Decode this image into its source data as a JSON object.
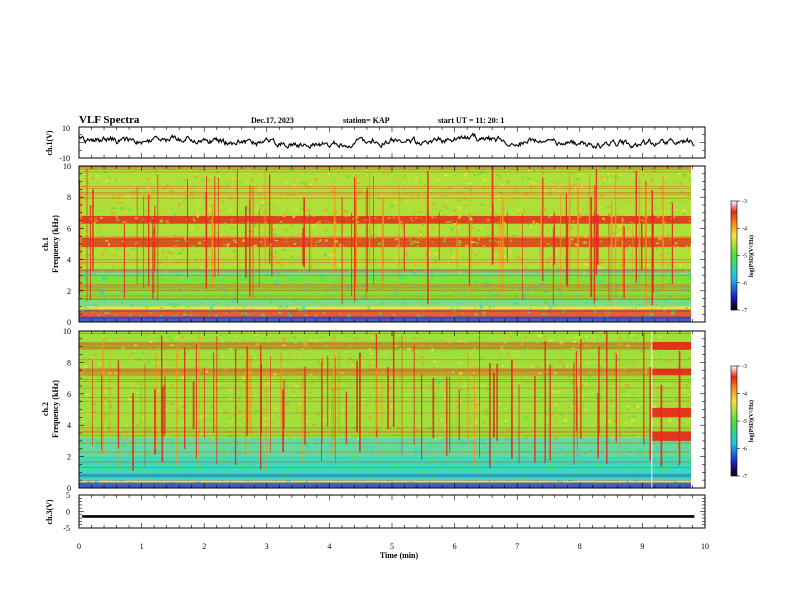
{
  "header": {
    "title": "VLF Spectra",
    "date": "Dec.17, 2023",
    "station": "station= KAP",
    "start": "start UT = 11: 20: 1"
  },
  "chart_data": [
    {
      "type": "line",
      "panel": "ch1-waveform",
      "ylabel": "ch.1(V)",
      "ylim": [
        -10,
        10
      ],
      "yticks": [
        "10",
        "-10"
      ],
      "xlim": [
        0,
        9.83
      ],
      "description_values": {
        "mean": 0.5,
        "typical_range": [
          -5,
          6
        ]
      }
    },
    {
      "type": "heatmap",
      "panel": "ch1-spectrogram",
      "ylabel": "ch.1\nFrequency (kHz)",
      "ylabel_lines": [
        "ch.1",
        "Frequency (kHz)"
      ],
      "ylim": [
        0,
        10
      ],
      "yticks": [
        "0",
        "2",
        "4",
        "6",
        "8",
        "10"
      ],
      "xlim": [
        0,
        9.83
      ],
      "colorbar": {
        "label": "log(PSD)(V²/Hz)",
        "range": [
          -7,
          -3
        ],
        "ticks": [
          "-7",
          "-6",
          "-5",
          "-4",
          "-3"
        ]
      },
      "bands_khz": [
        {
          "range": [
            6.3,
            6.7
          ],
          "level": "high"
        },
        {
          "range": [
            4.8,
            5.3
          ],
          "level": "high"
        },
        {
          "range": [
            3.0,
            3.4
          ],
          "level": "low"
        },
        {
          "range": [
            1.5,
            3.0
          ],
          "level": "low"
        },
        {
          "range": [
            0.2,
            0.8
          ],
          "level": "high"
        }
      ]
    },
    {
      "type": "heatmap",
      "panel": "ch2-spectrogram",
      "ylabel": "ch.2\nFrequency (kHz)",
      "ylabel_lines": [
        "ch.2",
        "Frequency (kHz)"
      ],
      "ylim": [
        0,
        10
      ],
      "yticks": [
        "0",
        "2",
        "4",
        "6",
        "8",
        "10"
      ],
      "xlim": [
        0,
        9.83
      ],
      "colorbar": {
        "label": "log(PSD)(V²/Hz)",
        "range": [
          -7,
          -3
        ],
        "ticks": [
          "-7",
          "-6",
          "-5",
          "-4",
          "-3"
        ]
      },
      "bands_khz": [
        {
          "range": [
            2.0,
            3.2
          ],
          "level": "low"
        },
        {
          "range": [
            0.5,
            2.0
          ],
          "level": "lowest"
        },
        {
          "range": [
            8.8,
            9.3
          ],
          "level": "high"
        },
        {
          "range": [
            7.2,
            7.6
          ],
          "level": "high"
        }
      ]
    },
    {
      "type": "line",
      "panel": "ch3-waveform",
      "ylabel": "ch.3(V)",
      "ylim": [
        -5,
        5
      ],
      "yticks": [
        "5",
        "0",
        "-5"
      ],
      "xlim": [
        0,
        9.83
      ],
      "description_values": {
        "level": -1.5,
        "amplitude": 0.4
      },
      "xlabel": "Time (min)",
      "xticks": [
        "0",
        "1",
        "2",
        "3",
        "4",
        "5",
        "6",
        "7",
        "8",
        "9",
        "10"
      ]
    }
  ],
  "colors": {
    "red": "#e8261a",
    "orange": "#f7a21a",
    "yellow": "#f1e43c",
    "green": "#6fe23a",
    "cyan": "#2ad8c8",
    "blue": "#1f3fe0",
    "black": "#000000"
  }
}
